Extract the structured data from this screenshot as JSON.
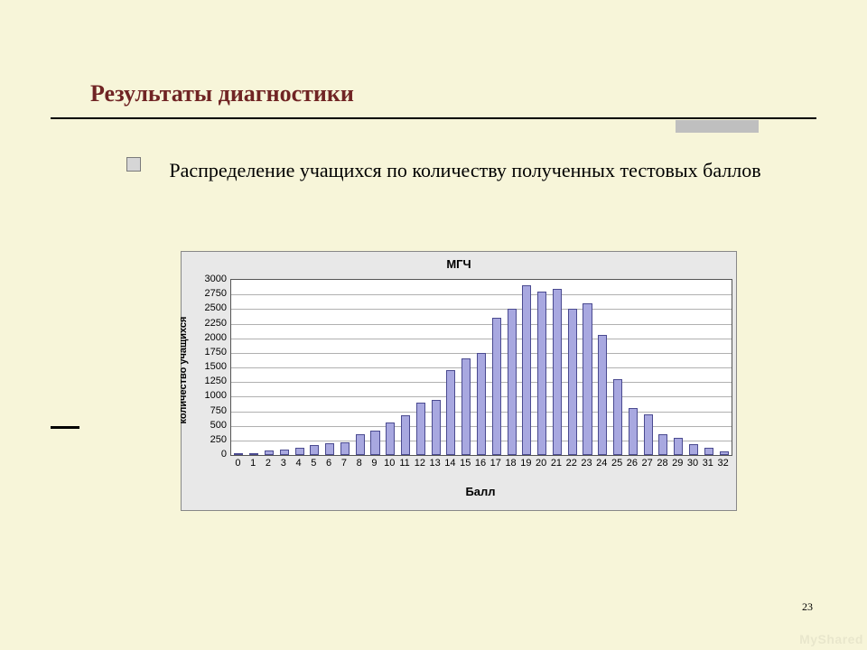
{
  "page": {
    "background_color": "#f7f5d9",
    "title": "Результаты диагностики",
    "title_color": "#702424",
    "accent_color": "#bfbfbf",
    "page_number": "23",
    "watermark": "MyShared"
  },
  "bullet": {
    "text": "Распределение учащихся по количеству полученных тестовых баллов",
    "text_color": "#000000",
    "box_fill": "#d6d6d6",
    "box_border": "#7a7a7a"
  },
  "chart": {
    "type": "bar",
    "title": "МГЧ",
    "outer_bg": "#e8e8e8",
    "plot_bg": "#ffffff",
    "grid_color": "#b0b0b0",
    "bar_fill": "#a8a8e0",
    "bar_border": "#4a4a90",
    "x_label": "Балл",
    "y_label": "количество учащихся",
    "x_categories": [
      "0",
      "1",
      "2",
      "3",
      "4",
      "5",
      "6",
      "7",
      "8",
      "9",
      "10",
      "11",
      "12",
      "13",
      "14",
      "15",
      "16",
      "17",
      "18",
      "19",
      "20",
      "21",
      "22",
      "23",
      "24",
      "25",
      "26",
      "27",
      "28",
      "29",
      "30",
      "31",
      "32"
    ],
    "y_ticks": [
      0,
      250,
      500,
      750,
      1000,
      1250,
      1500,
      1750,
      2000,
      2250,
      2500,
      2750,
      3000
    ],
    "ylim": [
      0,
      3000
    ],
    "values": [
      30,
      5,
      80,
      100,
      130,
      170,
      200,
      220,
      350,
      420,
      550,
      680,
      900,
      950,
      1450,
      1660,
      1750,
      2350,
      2500,
      2900,
      2800,
      2850,
      2500,
      2600,
      2050,
      1300,
      810,
      700,
      350,
      300,
      180,
      120,
      60
    ],
    "bar_width_ratio": 0.6,
    "title_fontsize": 13,
    "axis_label_fontsize": 13,
    "tick_fontsize": 11
  }
}
